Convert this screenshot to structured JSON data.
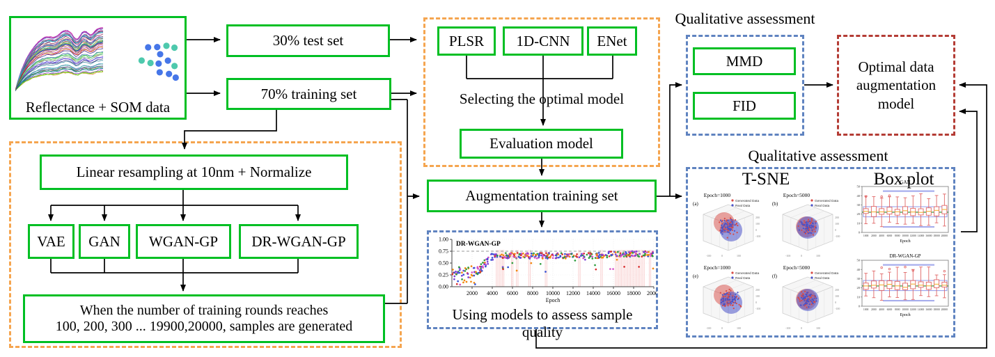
{
  "labels": {
    "reflectance": "Reflectance + SOM data",
    "test_set": "30% test set",
    "training_set": "70% training set",
    "plsr": "PLSR",
    "cnn_1d": "1D-CNN",
    "enet": "ENet",
    "selecting": "Selecting the optimal model",
    "evaluation_model": "Evaluation model",
    "augmentation_set": "Augmentation training set",
    "resampling": "Linear resampling at 10nm + Normalize",
    "vae": "VAE",
    "gan": "GAN",
    "wgan_gp": "WGAN-GP",
    "dr_wgan_gp": "DR-WGAN-GP",
    "rounds_line1": "When the number of training rounds reaches",
    "rounds_line2": "100, 200, 300 ... 19900,20000, samples are generated",
    "qualitative_1": "Qualitative assessment",
    "qualitative_2": "Qualitative assessment",
    "mmd": "MMD",
    "fid": "FID",
    "optimal_model": "Optimal data augmentation model",
    "tsne_title": "T-SNE",
    "boxplot_title": "Box plot",
    "assess_caption": "Using models to assess sample quality"
  },
  "colors": {
    "box_green": "#00bf23",
    "dash_orange": "#f5a54f",
    "dash_blue": "#5f83c0",
    "dash_red": "#b43c35",
    "line_black": "#000000"
  },
  "chart_data": [
    {
      "id": "reflectance_spectra",
      "type": "line",
      "title": "",
      "description": "dense bundle of multicolored soil reflectance spectra rising steeply then plateauing with absorption dips",
      "series_count": 52
    },
    {
      "id": "som_dots",
      "type": "scatter",
      "description": "cluster of SOM sample dots",
      "dot_colors": [
        "#4676e8",
        "#4ec9ad"
      ]
    },
    {
      "id": "quality_scatter",
      "type": "scatter",
      "title": "DR-WGAN-GP",
      "xlabel": "Epoch",
      "x_ticks": [
        "2000",
        "4000",
        "6000",
        "8000",
        "10000",
        "12000",
        "14000",
        "16000",
        "18000",
        "20000"
      ],
      "y_ticks": [
        "0.00",
        "0.25",
        "0.50",
        "0.75",
        "1.00"
      ],
      "xlim": [
        0,
        20000
      ],
      "ylim": [
        0,
        1
      ],
      "hline_dashed": 0.75,
      "point_colors": [
        "#d93030",
        "#3452d6",
        "#2f9e3f",
        "#f2880f",
        "#7b3fd6",
        "#d650c8"
      ],
      "trend": "scores 0.05-0.45 before epoch 2500, rising 2500-4200, plateau 0.55-0.80 afterwards with sparse low outliers",
      "red_band_epochs": [
        [
          4400,
          5250
        ],
        [
          5900,
          6100
        ],
        [
          6400,
          6600
        ],
        [
          7600,
          7800
        ],
        [
          9250,
          9400
        ],
        [
          12550,
          12700
        ],
        [
          14750,
          14900
        ],
        [
          16200,
          19100
        ],
        [
          19550,
          19750
        ]
      ]
    },
    {
      "id": "tsne_grid",
      "type": "scatter3d",
      "legend": [
        "Generated Data",
        "Real Data"
      ],
      "legend_colors": [
        "#d84a44",
        "#4a52c8"
      ],
      "subplots": [
        {
          "tag": "(a)",
          "title": "Epoch=1000",
          "variant": "offset"
        },
        {
          "tag": "(b)",
          "title": "Epoch=5000",
          "variant": "concentric"
        },
        {
          "tag": "(e)",
          "title": "Epoch=1000",
          "variant": "offset"
        },
        {
          "tag": "(f)",
          "title": "Epoch=5000",
          "variant": "concentric"
        }
      ],
      "z_ticks": [
        "200",
        "100",
        "0",
        "-100"
      ],
      "floor_ticks": [
        "-100",
        "0",
        "100"
      ]
    },
    {
      "id": "epoch_boxplots",
      "type": "box",
      "subplots": [
        {
          "title": "GAN"
        },
        {
          "title": "DR-WGAN-GP"
        }
      ],
      "xlabel": "Epoch",
      "x_ticks": [
        "1000",
        "2000",
        "4000",
        "6000",
        "8000",
        "10000",
        "12000",
        "14000",
        "16000",
        "18000",
        "20000"
      ],
      "y_ticks": [
        "0",
        "10",
        "20",
        "30",
        "40",
        "50"
      ],
      "box_color": "#e06666",
      "median_color": "#f2b233",
      "mean_line_color": "#18922b",
      "band_color": "#8a93e8"
    }
  ]
}
